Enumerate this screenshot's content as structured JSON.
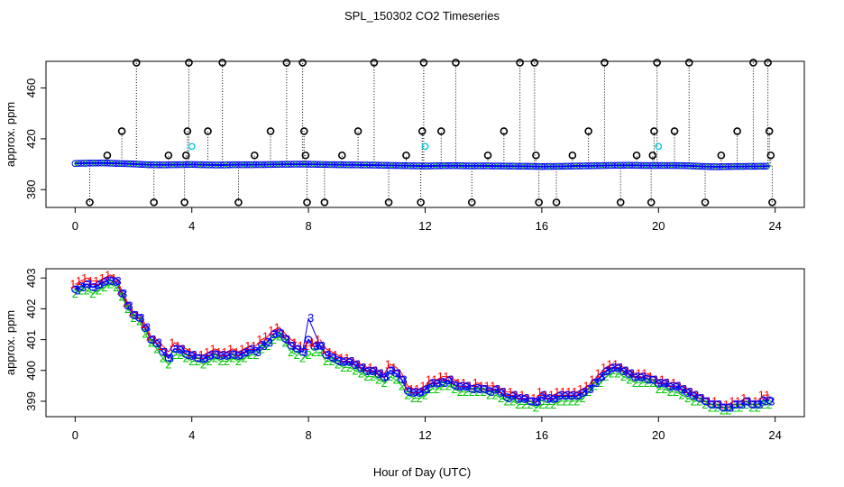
{
  "title": "SPL_150302  CO2 Timeseries",
  "xlabel": "Hour of Day (UTC)",
  "colors": {
    "line": "#0000ff",
    "circle_open": "#000000",
    "circle_cyan": "#00c8e0",
    "lbl1": "#ff0000",
    "lbl2": "#00c800",
    "lbl3": "#0000ff"
  },
  "chart_data": [
    {
      "type": "scatter",
      "name": "top-panel",
      "ylabel": "approx. ppm",
      "xlim": [
        -1,
        25
      ],
      "ylim": [
        366,
        481
      ],
      "xticks": [
        0,
        4,
        8,
        12,
        16,
        20,
        24
      ],
      "yticks": [
        380,
        420,
        460
      ],
      "ytick_labels": [
        "380",
        "420",
        "460"
      ],
      "xtick_labels": [
        "0",
        "4",
        "8",
        "12",
        "16",
        "20",
        "24"
      ],
      "baseline": [
        [
          0.0,
          400.6
        ],
        [
          0.5,
          400.9
        ],
        [
          1.0,
          401.0
        ],
        [
          1.5,
          400.6
        ],
        [
          2.0,
          400.2
        ],
        [
          2.5,
          399.6
        ],
        [
          3.0,
          399.5
        ],
        [
          3.5,
          399.6
        ],
        [
          4.0,
          399.8
        ],
        [
          4.5,
          399.5
        ],
        [
          5.0,
          399.4
        ],
        [
          5.5,
          399.6
        ],
        [
          6.0,
          399.6
        ],
        [
          6.5,
          399.7
        ],
        [
          7.0,
          399.9
        ],
        [
          7.5,
          400.0
        ],
        [
          8.0,
          400.0
        ],
        [
          8.5,
          399.8
        ],
        [
          9.0,
          399.6
        ],
        [
          9.5,
          399.5
        ],
        [
          10.0,
          399.4
        ],
        [
          10.5,
          399.2
        ],
        [
          11.0,
          399.0
        ],
        [
          11.5,
          398.8
        ],
        [
          12.0,
          398.6
        ],
        [
          12.5,
          398.8
        ],
        [
          13.0,
          398.9
        ],
        [
          13.5,
          398.7
        ],
        [
          14.0,
          398.7
        ],
        [
          14.5,
          398.6
        ],
        [
          15.0,
          398.5
        ],
        [
          15.5,
          398.4
        ],
        [
          16.0,
          398.2
        ],
        [
          16.5,
          398.3
        ],
        [
          17.0,
          398.5
        ],
        [
          17.5,
          398.7
        ],
        [
          18.0,
          398.9
        ],
        [
          18.5,
          399.1
        ],
        [
          19.0,
          399.2
        ],
        [
          19.5,
          399.0
        ],
        [
          20.0,
          399.0
        ],
        [
          20.5,
          399.0
        ],
        [
          21.0,
          398.8
        ],
        [
          21.5,
          398.3
        ],
        [
          22.0,
          398.0
        ],
        [
          22.5,
          398.2
        ],
        [
          23.0,
          398.3
        ],
        [
          23.5,
          398.4
        ],
        [
          23.8,
          398.5
        ]
      ],
      "spikes": [
        {
          "x": 0.5,
          "y": 370
        },
        {
          "x": 1.1,
          "y": 407
        },
        {
          "x": 1.6,
          "y": 426
        },
        {
          "x": 2.1,
          "y": 480
        },
        {
          "x": 2.7,
          "y": 370
        },
        {
          "x": 3.2,
          "y": 407
        },
        {
          "x": 3.75,
          "y": 370
        },
        {
          "x": 3.8,
          "y": 407
        },
        {
          "x": 3.85,
          "y": 426
        },
        {
          "x": 3.9,
          "y": 480
        },
        {
          "x": 4.55,
          "y": 426
        },
        {
          "x": 5.05,
          "y": 480
        },
        {
          "x": 5.6,
          "y": 370
        },
        {
          "x": 6.15,
          "y": 407
        },
        {
          "x": 6.7,
          "y": 426
        },
        {
          "x": 7.25,
          "y": 480
        },
        {
          "x": 7.8,
          "y": 480
        },
        {
          "x": 7.85,
          "y": 426
        },
        {
          "x": 7.9,
          "y": 407
        },
        {
          "x": 7.95,
          "y": 370
        },
        {
          "x": 8.55,
          "y": 370
        },
        {
          "x": 9.15,
          "y": 407
        },
        {
          "x": 9.7,
          "y": 426
        },
        {
          "x": 10.25,
          "y": 480
        },
        {
          "x": 10.75,
          "y": 370
        },
        {
          "x": 11.35,
          "y": 407
        },
        {
          "x": 11.85,
          "y": 370
        },
        {
          "x": 11.9,
          "y": 426
        },
        {
          "x": 11.95,
          "y": 480
        },
        {
          "x": 12.55,
          "y": 426
        },
        {
          "x": 13.05,
          "y": 480
        },
        {
          "x": 13.6,
          "y": 370
        },
        {
          "x": 14.15,
          "y": 407
        },
        {
          "x": 14.7,
          "y": 426
        },
        {
          "x": 15.25,
          "y": 480
        },
        {
          "x": 15.75,
          "y": 480
        },
        {
          "x": 15.8,
          "y": 407
        },
        {
          "x": 15.9,
          "y": 370
        },
        {
          "x": 16.5,
          "y": 370
        },
        {
          "x": 17.05,
          "y": 407
        },
        {
          "x": 17.6,
          "y": 426
        },
        {
          "x": 18.15,
          "y": 480
        },
        {
          "x": 18.7,
          "y": 370
        },
        {
          "x": 19.25,
          "y": 407
        },
        {
          "x": 19.75,
          "y": 370
        },
        {
          "x": 19.8,
          "y": 407
        },
        {
          "x": 19.85,
          "y": 426
        },
        {
          "x": 19.95,
          "y": 480
        },
        {
          "x": 20.55,
          "y": 426
        },
        {
          "x": 21.05,
          "y": 480
        },
        {
          "x": 21.6,
          "y": 370
        },
        {
          "x": 22.15,
          "y": 407
        },
        {
          "x": 22.7,
          "y": 426
        },
        {
          "x": 23.25,
          "y": 480
        },
        {
          "x": 23.75,
          "y": 480
        },
        {
          "x": 23.8,
          "y": 426
        },
        {
          "x": 23.85,
          "y": 407
        },
        {
          "x": 23.9,
          "y": 370
        }
      ],
      "cyan_points": [
        {
          "x": 4.0,
          "y": 414
        },
        {
          "x": 12.0,
          "y": 414
        },
        {
          "x": 20.0,
          "y": 414
        }
      ]
    },
    {
      "type": "line",
      "name": "bottom-panel",
      "ylabel": "approx. ppm",
      "xlim": [
        -1,
        25
      ],
      "ylim": [
        398.5,
        403.3
      ],
      "xticks": [
        0,
        4,
        8,
        12,
        16,
        20,
        24
      ],
      "yticks": [
        399,
        400,
        401,
        402,
        403
      ],
      "ytick_labels": [
        "399",
        "400",
        "401",
        "402",
        "403"
      ],
      "xtick_labels": [
        "0",
        "4",
        "8",
        "12",
        "16",
        "20",
        "24"
      ],
      "series_labels": [
        "1",
        "2",
        "3"
      ],
      "gaps": [
        [
          7.7,
          8.3
        ]
      ],
      "x": [
        0.0,
        0.2,
        0.4,
        0.6,
        0.8,
        1.0,
        1.2,
        1.4,
        1.6,
        1.8,
        2.0,
        2.2,
        2.4,
        2.6,
        2.8,
        3.0,
        3.2,
        3.4,
        3.6,
        3.8,
        4.0,
        4.2,
        4.4,
        4.6,
        4.8,
        5.0,
        5.2,
        5.4,
        5.6,
        5.8,
        6.0,
        6.2,
        6.4,
        6.6,
        6.8,
        7.0,
        7.2,
        7.4,
        7.6,
        7.8,
        8.0,
        8.2,
        8.4,
        8.6,
        8.8,
        9.0,
        9.2,
        9.4,
        9.6,
        9.8,
        10.0,
        10.2,
        10.4,
        10.6,
        10.8,
        11.0,
        11.2,
        11.4,
        11.6,
        11.8,
        12.0,
        12.2,
        12.4,
        12.6,
        12.8,
        13.0,
        13.2,
        13.4,
        13.6,
        13.8,
        14.0,
        14.2,
        14.4,
        14.6,
        14.8,
        15.0,
        15.2,
        15.4,
        15.6,
        15.8,
        16.0,
        16.2,
        16.4,
        16.6,
        16.8,
        17.0,
        17.2,
        17.4,
        17.6,
        17.8,
        18.0,
        18.2,
        18.4,
        18.6,
        18.8,
        19.0,
        19.2,
        19.4,
        19.6,
        19.8,
        20.0,
        20.2,
        20.4,
        20.6,
        20.8,
        21.0,
        21.2,
        21.4,
        21.6,
        21.8,
        22.0,
        22.2,
        22.4,
        22.6,
        22.8,
        23.0,
        23.2,
        23.4,
        23.6,
        23.8
      ],
      "series": [
        {
          "name": "1",
          "values": [
            402.8,
            402.9,
            403.0,
            402.9,
            402.9,
            403.0,
            403.1,
            403.0,
            402.6,
            402.2,
            401.9,
            401.8,
            401.5,
            401.1,
            401.0,
            400.8,
            400.6,
            400.9,
            400.8,
            400.7,
            400.6,
            400.5,
            400.5,
            400.6,
            400.7,
            400.6,
            400.6,
            400.7,
            400.6,
            400.7,
            400.8,
            400.8,
            401.0,
            401.1,
            401.3,
            401.4,
            401.2,
            401.0,
            400.9,
            400.8,
            400.8,
            400.9,
            401.0,
            400.7,
            400.6,
            400.5,
            400.4,
            400.4,
            400.3,
            400.2,
            400.1,
            400.1,
            400.0,
            399.9,
            400.2,
            400.1,
            399.9,
            399.5,
            399.4,
            399.4,
            399.5,
            399.7,
            399.7,
            399.8,
            399.8,
            399.7,
            399.6,
            399.6,
            399.5,
            399.6,
            399.5,
            399.5,
            399.5,
            399.4,
            399.3,
            399.3,
            399.2,
            399.2,
            399.1,
            399.1,
            399.3,
            399.2,
            399.2,
            399.3,
            399.3,
            399.3,
            399.3,
            399.4,
            399.5,
            399.7,
            399.9,
            400.1,
            400.2,
            400.2,
            400.1,
            400.0,
            399.9,
            399.9,
            399.9,
            399.8,
            399.7,
            399.7,
            399.6,
            399.6,
            399.5,
            399.4,
            399.3,
            399.2,
            399.1,
            399.0,
            399.0,
            398.9,
            398.9,
            399.0,
            399.0,
            399.1,
            399.0,
            399.0,
            399.2,
            399.2
          ]
        },
        {
          "name": "2",
          "values": [
            402.5,
            402.6,
            402.6,
            402.5,
            402.6,
            402.7,
            402.8,
            402.7,
            402.4,
            402.0,
            401.7,
            401.6,
            401.2,
            400.9,
            400.7,
            400.4,
            400.2,
            400.5,
            400.5,
            400.4,
            400.3,
            400.3,
            400.2,
            400.3,
            400.4,
            400.3,
            400.3,
            400.4,
            400.3,
            400.4,
            400.5,
            400.5,
            400.7,
            400.8,
            401.0,
            401.1,
            400.9,
            400.6,
            400.5,
            400.4,
            400.5,
            400.6,
            400.6,
            400.3,
            400.3,
            400.2,
            400.1,
            400.1,
            400.0,
            399.9,
            399.8,
            399.8,
            399.7,
            399.6,
            399.8,
            399.7,
            399.5,
            399.2,
            399.1,
            399.1,
            399.2,
            399.4,
            399.4,
            399.5,
            399.5,
            399.4,
            399.3,
            399.3,
            399.3,
            399.3,
            399.3,
            399.2,
            399.2,
            399.1,
            399.0,
            399.0,
            398.9,
            398.9,
            398.9,
            398.8,
            398.9,
            398.9,
            398.9,
            399.0,
            399.0,
            399.0,
            399.0,
            399.1,
            399.3,
            399.5,
            399.6,
            399.8,
            399.9,
            399.9,
            399.8,
            399.7,
            399.6,
            399.6,
            399.6,
            399.6,
            399.4,
            399.4,
            399.3,
            399.3,
            399.2,
            399.1,
            399.0,
            399.0,
            398.9,
            398.8,
            398.8,
            398.7,
            398.7,
            398.8,
            398.8,
            398.9,
            398.8,
            398.8,
            398.9,
            398.9
          ]
        },
        {
          "name": "3",
          "values": [
            402.6,
            402.7,
            402.8,
            402.7,
            402.8,
            402.9,
            402.9,
            402.9,
            402.5,
            402.1,
            401.8,
            401.7,
            401.4,
            401.0,
            400.9,
            400.6,
            400.4,
            400.7,
            400.7,
            400.5,
            400.5,
            400.4,
            400.4,
            400.5,
            400.5,
            400.5,
            400.5,
            400.5,
            400.5,
            400.6,
            400.7,
            400.6,
            400.8,
            400.9,
            401.2,
            401.2,
            401.0,
            400.8,
            400.7,
            400.6,
            401.7,
            400.8,
            400.8,
            400.5,
            400.4,
            400.3,
            400.3,
            400.3,
            400.2,
            400.1,
            400.0,
            400.0,
            399.9,
            399.8,
            400.0,
            399.9,
            399.7,
            399.3,
            399.3,
            399.3,
            399.4,
            399.6,
            399.6,
            399.6,
            399.7,
            399.5,
            399.5,
            399.5,
            399.4,
            399.4,
            399.4,
            399.3,
            399.4,
            399.3,
            399.1,
            399.2,
            399.1,
            399.1,
            399.0,
            399.0,
            399.2,
            399.1,
            399.1,
            399.2,
            399.2,
            399.2,
            399.2,
            399.3,
            399.4,
            399.6,
            399.8,
            400.0,
            400.1,
            400.1,
            400.0,
            399.9,
            399.8,
            399.8,
            399.7,
            399.7,
            399.6,
            399.6,
            399.5,
            399.5,
            399.4,
            399.3,
            399.2,
            399.1,
            399.0,
            398.9,
            398.9,
            398.8,
            398.8,
            398.9,
            398.9,
            399.0,
            398.9,
            398.9,
            399.0,
            399.0
          ]
        }
      ]
    }
  ]
}
